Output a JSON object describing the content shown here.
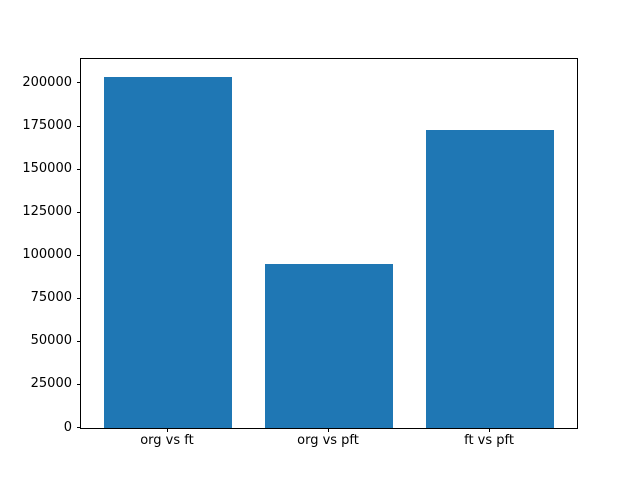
{
  "chart_data": {
    "type": "bar",
    "title": "",
    "xlabel": "",
    "ylabel": "",
    "categories": [
      "org vs ft",
      "org vs pft",
      "ft vs pft"
    ],
    "values": [
      204000,
      95000,
      173000
    ],
    "yticks": [
      0,
      25000,
      50000,
      75000,
      100000,
      125000,
      150000,
      175000,
      200000
    ],
    "ylim": [
      0,
      214200
    ],
    "grid": false,
    "legend": null,
    "bar_color": "#1f77b4",
    "background_color": "#ffffff",
    "axis_color": "#000000"
  }
}
